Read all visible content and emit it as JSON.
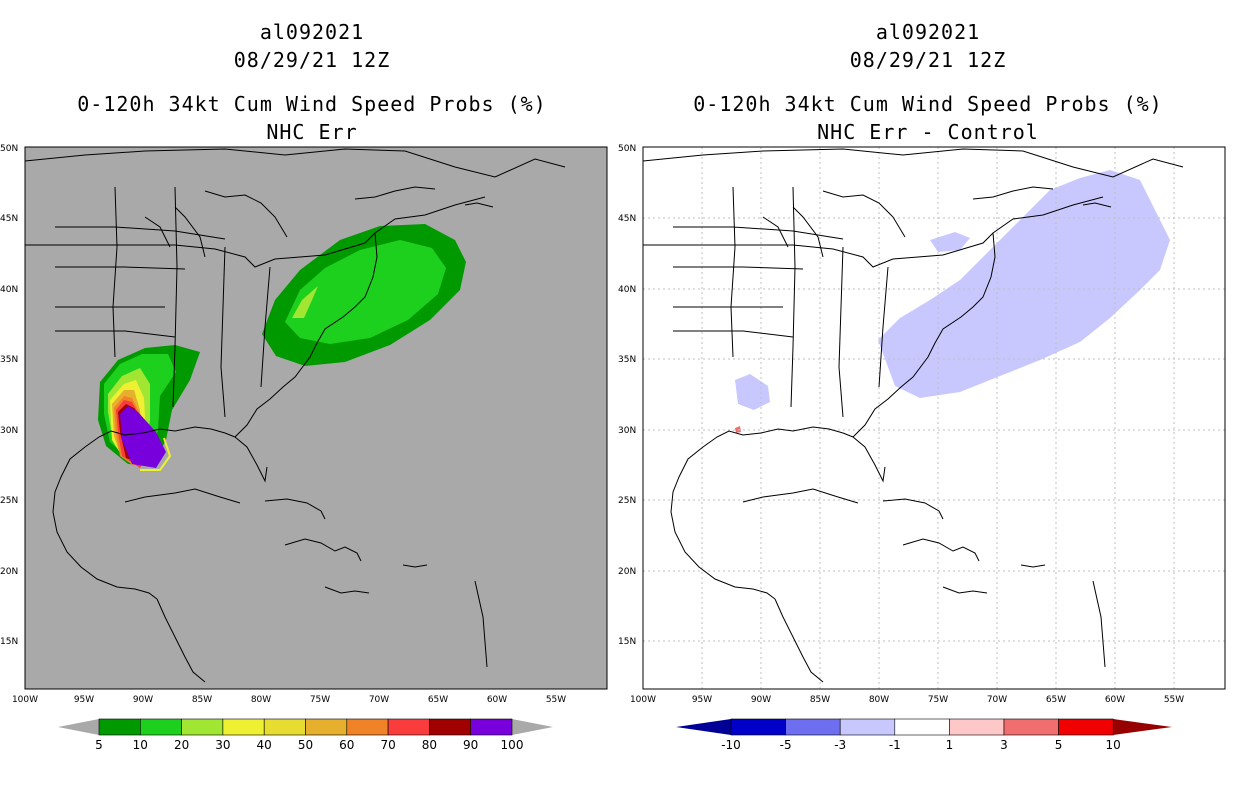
{
  "left": {
    "storm": "al092021",
    "datetime": "08/29/21 12Z",
    "title": "0-120h 34kt Cum Wind Speed Probs (%)",
    "subtitle": "NHC Err",
    "background": "#a9a9a9",
    "colorbar": {
      "labels": [
        "5",
        "10",
        "20",
        "30",
        "40",
        "50",
        "60",
        "70",
        "80",
        "90",
        "100"
      ],
      "colors": [
        "#009a00",
        "#1ed01e",
        "#a0e632",
        "#f0f032",
        "#e6dc32",
        "#e6af2d",
        "#f08228",
        "#fa3c3c",
        "#a00000",
        "#7800dc"
      ],
      "extend_color": "#a9a9a9"
    }
  },
  "right": {
    "storm": "al092021",
    "datetime": "08/29/21 12Z",
    "title": "0-120h 34kt Cum Wind Speed Probs (%)",
    "subtitle": "NHC Err - Control",
    "background": "#ffffff",
    "colorbar": {
      "labels": [
        "-10",
        "-5",
        "-3",
        "-1",
        "1",
        "3",
        "5",
        "10"
      ],
      "colors": [
        "#0000c8",
        "#6e6ef0",
        "#c8c8ff",
        "#ffffff",
        "#ffc8c8",
        "#f06e6e",
        "#f00000"
      ],
      "extend_low": "#000096",
      "extend_high": "#960000"
    }
  },
  "lat_labels": [
    "50N",
    "45N",
    "40N",
    "35N",
    "30N",
    "25N",
    "20N",
    "15N"
  ],
  "lon_labels": [
    "100W",
    "95W",
    "90W",
    "85W",
    "80W",
    "75W",
    "70W",
    "65W",
    "60W",
    "55W"
  ]
}
